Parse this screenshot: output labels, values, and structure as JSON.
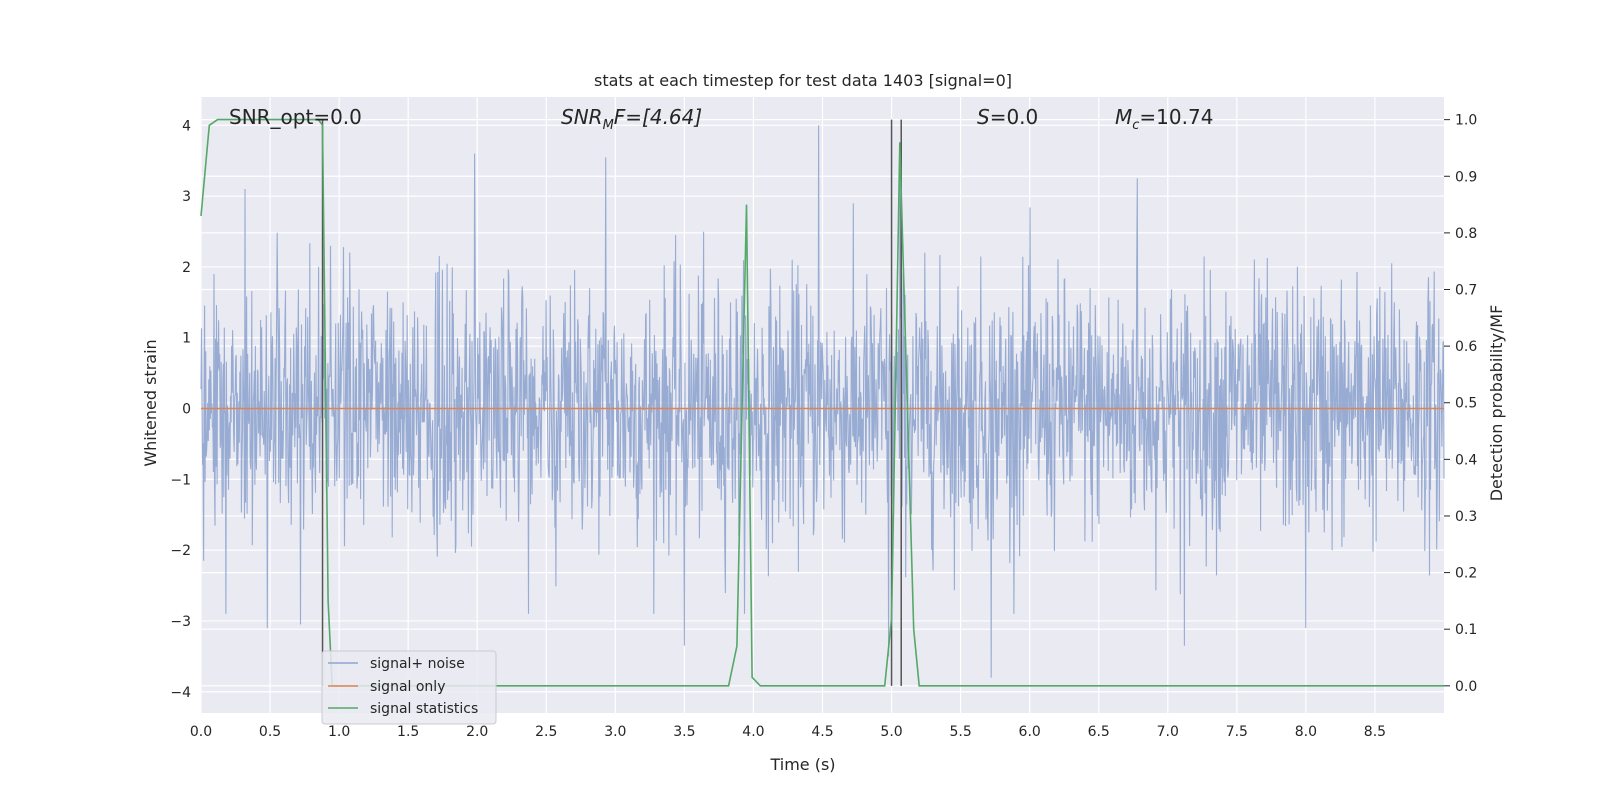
{
  "chart_data": {
    "type": "line",
    "title": "stats at each timestep for test data 1403 [signal=0]",
    "xlabel": "Time (s)",
    "ylabel": "Whitened strain",
    "y2label": "Detection probability/MF",
    "xlim": [
      0,
      9.0
    ],
    "ylim": [
      -4.3,
      4.4
    ],
    "y2lim": [
      -0.048,
      1.04
    ],
    "x_ticks": [
      0.0,
      0.5,
      1.0,
      1.5,
      2.0,
      2.5,
      3.0,
      3.5,
      4.0,
      4.5,
      5.0,
      5.5,
      6.0,
      6.5,
      7.0,
      7.5,
      8.0,
      8.5
    ],
    "x_tick_labels": [
      "0.0",
      "0.5",
      "1.0",
      "1.5",
      "2.0",
      "2.5",
      "3.0",
      "3.5",
      "4.0",
      "4.5",
      "5.0",
      "5.5",
      "6.0",
      "6.5",
      "7.0",
      "7.5",
      "8.0",
      "8.5"
    ],
    "y_ticks": [
      -4,
      -3,
      -2,
      -1,
      0,
      1,
      2,
      3,
      4
    ],
    "y_tick_labels": [
      "−4",
      "−3",
      "−2",
      "−1",
      "0",
      "1",
      "2",
      "3",
      "4"
    ],
    "y2_ticks": [
      0.0,
      0.1,
      0.2,
      0.3,
      0.4,
      0.5,
      0.6,
      0.7,
      0.8,
      0.9,
      1.0
    ],
    "y2_tick_labels": [
      "0.0",
      "0.1",
      "0.2",
      "0.3",
      "0.4",
      "0.5",
      "0.6",
      "0.7",
      "0.8",
      "0.9",
      "1.0"
    ],
    "grid": true,
    "legend_position": "lower-left",
    "annotations": {
      "snr_opt": "SNR_opt=0.0",
      "snr_mf_main": "SNR",
      "snr_mf_sub": "M",
      "snr_mf_rest": "F=[4.64]",
      "s_main": "S",
      "s_rest": "=0.0",
      "mc_main": "M",
      "mc_sub": "c",
      "mc_rest": "=10.74"
    },
    "series": [
      {
        "name": "signal+ noise",
        "color": "#8fa5cf",
        "description_values": "whitened strain noise, approx. Gaussian, mostly within [-2.5, 2.5], peaks up to ~4",
        "noise_sigma": 0.9,
        "peaks": [
          [
            0.32,
            3.1
          ],
          [
            1.98,
            3.6
          ],
          [
            2.93,
            3.55
          ],
          [
            4.47,
            4.0
          ],
          [
            5.06,
            3.7
          ],
          [
            6.78,
            3.25
          ],
          [
            5.72,
            -3.8
          ],
          [
            4.98,
            -3.5
          ],
          [
            0.48,
            -3.1
          ],
          [
            0.72,
            -3.05
          ],
          [
            3.5,
            -3.35
          ],
          [
            7.12,
            -3.35
          ],
          [
            8.0,
            -3.1
          ]
        ]
      },
      {
        "name": "signal only",
        "color": "#dd8452",
        "x": [
          0.0,
          9.0
        ],
        "y": [
          0.0,
          0.0
        ]
      },
      {
        "name": "signal statistics",
        "color": "#55a868",
        "axis": "right",
        "x": [
          0.0,
          0.06,
          0.12,
          0.25,
          0.5,
          0.75,
          0.85,
          0.88,
          0.92,
          0.95,
          1.0,
          3.82,
          3.88,
          3.95,
          3.99,
          4.05,
          4.95,
          5.0,
          5.06,
          5.16,
          5.2,
          9.0
        ],
        "y": [
          0.83,
          0.99,
          1.0,
          1.0,
          1.0,
          1.0,
          1.0,
          0.99,
          0.15,
          0.0,
          0.0,
          0.0,
          0.07,
          0.85,
          0.015,
          0.0,
          0.0,
          0.12,
          0.96,
          0.1,
          0.0,
          0.0
        ]
      }
    ],
    "vertical_lines": [
      {
        "x": 0.88,
        "color": "#555555"
      },
      {
        "x": 5.0,
        "color": "#555555"
      },
      {
        "x": 5.07,
        "color": "#555555"
      }
    ]
  }
}
